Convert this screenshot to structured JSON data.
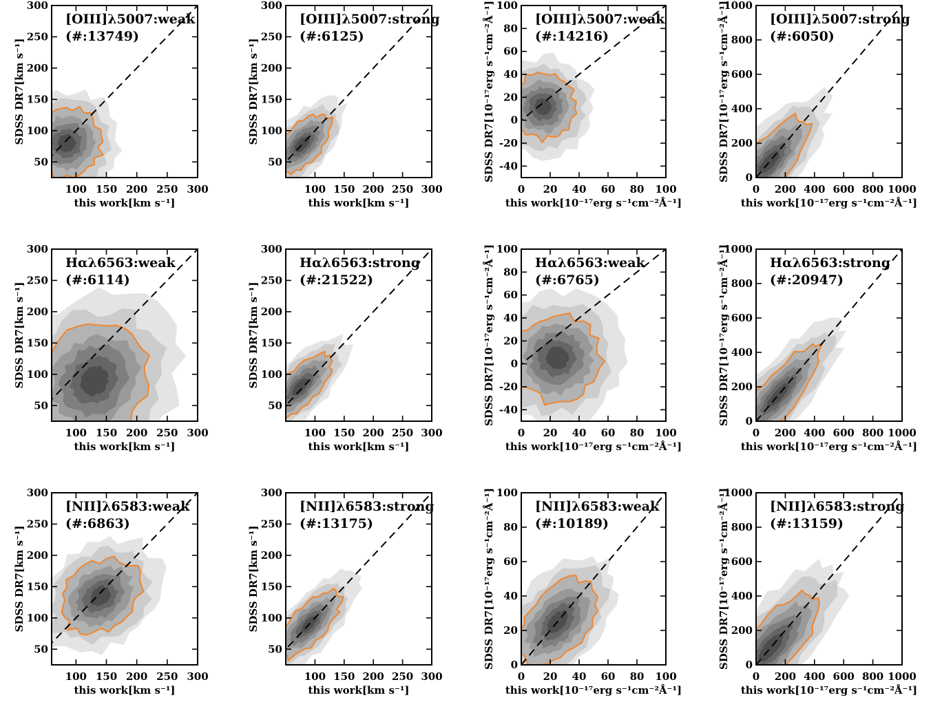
{
  "chart_data": [
    {
      "type": "contour-scatter",
      "title": "[OIII]λ5007:weak",
      "count_label": "(#:13749)",
      "xlabel": "this work[km s⁻¹]",
      "ylabel": "SDSS DR7[km s⁻¹]",
      "xlim": [
        60,
        300
      ],
      "ylim": [
        25,
        300
      ],
      "xticks": [
        100,
        150,
        200,
        250,
        300
      ],
      "yticks": [
        50,
        100,
        150,
        200,
        250,
        300
      ],
      "density_center": [
        85,
        80
      ],
      "spread": [
        35,
        30
      ],
      "corr": 0.4
    },
    {
      "type": "contour-scatter",
      "title": "[OIII]λ5007:strong",
      "count_label": "(#:6125)",
      "xlabel": "this work[km s⁻¹]",
      "ylabel": "SDSS DR7[km s⁻¹]",
      "xlim": [
        50,
        300
      ],
      "ylim": [
        25,
        300
      ],
      "xticks": [
        100,
        150,
        200,
        250,
        300
      ],
      "yticks": [
        50,
        100,
        150,
        200,
        250,
        300
      ],
      "density_center": [
        78,
        78
      ],
      "spread": [
        35,
        35
      ],
      "corr": 0.92
    },
    {
      "type": "contour-scatter",
      "title": "[OIII]λ5007:weak",
      "count_label": "(#:14216)",
      "xlabel": "this work[10⁻¹⁷erg s⁻¹cm⁻²Å⁻¹]",
      "ylabel": "SDSS DR7[10⁻¹⁷erg s⁻¹cm⁻²Å⁻¹]",
      "xlim": [
        0,
        100
      ],
      "ylim": [
        -50,
        100
      ],
      "xticks": [
        0,
        20,
        40,
        60,
        80,
        100
      ],
      "yticks": [
        -40,
        -20,
        0,
        20,
        40,
        60,
        80,
        100
      ],
      "density_center": [
        15,
        12
      ],
      "spread": [
        14,
        14
      ],
      "corr": 0.3
    },
    {
      "type": "contour-scatter",
      "title": "[OIII]λ5007:strong",
      "count_label": "(#:6050)",
      "xlabel": "this work[10⁻¹⁷erg s⁻¹cm⁻²Å⁻¹]",
      "ylabel": "SDSS DR7[10⁻¹⁷erg s⁻¹cm⁻²Å⁻¹]",
      "xlim": [
        0,
        1000
      ],
      "ylim": [
        0,
        1000
      ],
      "xticks": [
        0,
        200,
        400,
        600,
        800,
        1000
      ],
      "yticks": [
        0,
        200,
        400,
        600,
        800,
        1000
      ],
      "density_center": [
        90,
        90
      ],
      "spread": [
        200,
        200
      ],
      "corr": 0.95
    },
    {
      "type": "contour-scatter",
      "title": "Hαλ6563:weak",
      "count_label": "(#:6114)",
      "xlabel": "this work[km s⁻¹]",
      "ylabel": "SDSS DR7[km s⁻¹]",
      "xlim": [
        60,
        300
      ],
      "ylim": [
        25,
        300
      ],
      "xticks": [
        100,
        150,
        200,
        250,
        300
      ],
      "yticks": [
        50,
        100,
        150,
        200,
        250,
        300
      ],
      "density_center": [
        130,
        90
      ],
      "spread": [
        50,
        60
      ],
      "corr": 0.5
    },
    {
      "type": "contour-scatter",
      "title": "Hαλ6563:strong",
      "count_label": "(#:21522)",
      "xlabel": "this work[km s⁻¹]",
      "ylabel": "SDSS DR7[km s⁻¹]",
      "xlim": [
        50,
        300
      ],
      "ylim": [
        25,
        300
      ],
      "xticks": [
        100,
        150,
        200,
        250,
        300
      ],
      "yticks": [
        50,
        100,
        150,
        200,
        250,
        300
      ],
      "density_center": [
        75,
        80
      ],
      "spread": [
        40,
        40
      ],
      "corr": 0.95
    },
    {
      "type": "contour-scatter",
      "title": "Hαλ6563:weak",
      "count_label": "(#:6765)",
      "xlabel": "this work[10⁻¹⁷erg s⁻¹cm⁻²Å⁻¹]",
      "ylabel": "SDSS DR7[10⁻¹⁷erg s⁻¹cm⁻²Å⁻¹]",
      "xlim": [
        0,
        100
      ],
      "ylim": [
        -50,
        100
      ],
      "xticks": [
        0,
        20,
        40,
        60,
        80,
        100
      ],
      "yticks": [
        -40,
        -20,
        0,
        20,
        40,
        60,
        80,
        100
      ],
      "density_center": [
        25,
        5
      ],
      "spread": [
        20,
        18
      ],
      "corr": 0.3
    },
    {
      "type": "contour-scatter",
      "title": "Hαλ6563:strong",
      "count_label": "(#:20947)",
      "xlabel": "this work[10⁻¹⁷erg s⁻¹cm⁻²Å⁻¹]",
      "ylabel": "SDSS DR7[10⁻¹⁷erg s⁻¹cm⁻²Å⁻¹]",
      "xlim": [
        0,
        1000
      ],
      "ylim": [
        0,
        1000
      ],
      "xticks": [
        0,
        200,
        400,
        600,
        800,
        1000
      ],
      "yticks": [
        0,
        200,
        400,
        600,
        800,
        1000
      ],
      "density_center": [
        150,
        150
      ],
      "spread": [
        220,
        220
      ],
      "corr": 0.97
    },
    {
      "type": "contour-scatter",
      "title": "[NII]λ6583:weak",
      "count_label": "(#:6863)",
      "xlabel": "this work[km s⁻¹]",
      "ylabel": "SDSS DR7[km s⁻¹]",
      "xlim": [
        60,
        300
      ],
      "ylim": [
        25,
        300
      ],
      "xticks": [
        100,
        150,
        200,
        250,
        300
      ],
      "yticks": [
        50,
        100,
        150,
        200,
        250,
        300
      ],
      "density_center": [
        140,
        135
      ],
      "spread": [
        45,
        35
      ],
      "corr": 0.7
    },
    {
      "type": "contour-scatter",
      "title": "[NII]λ6583:strong",
      "count_label": "(#:13175)",
      "xlabel": "this work[km s⁻¹]",
      "ylabel": "SDSS DR7[km s⁻¹]",
      "xlim": [
        50,
        300
      ],
      "ylim": [
        25,
        300
      ],
      "xticks": [
        100,
        150,
        200,
        250,
        300
      ],
      "yticks": [
        50,
        100,
        150,
        200,
        250,
        300
      ],
      "density_center": [
        90,
        90
      ],
      "spread": [
        40,
        40
      ],
      "corr": 0.95
    },
    {
      "type": "contour-scatter",
      "title": "[NII]λ6583:weak",
      "count_label": "(#:10189)",
      "xlabel": "this work[10⁻¹⁷erg s⁻¹cm⁻²Å⁻¹]",
      "ylabel": "SDSS DR7[10⁻¹⁷erg s⁻¹cm⁻²Å⁻¹]",
      "xlim": [
        0,
        100
      ],
      "ylim": [
        0,
        100
      ],
      "xticks": [
        0,
        20,
        40,
        60,
        80,
        100
      ],
      "yticks": [
        0,
        20,
        40,
        60,
        80,
        100
      ],
      "density_center": [
        25,
        25
      ],
      "spread": [
        18,
        18
      ],
      "corr": 0.85
    },
    {
      "type": "contour-scatter",
      "title": "[NII]λ6583:strong",
      "count_label": "(#:13159)",
      "xlabel": "this work[10⁻¹⁷erg s⁻¹cm⁻²Å⁻¹]",
      "ylabel": "SDSS DR7[10⁻¹⁷erg s⁻¹cm⁻²Å⁻¹]",
      "xlim": [
        0,
        1000
      ],
      "ylim": [
        0,
        1000
      ],
      "xticks": [
        0,
        200,
        400,
        600,
        800,
        1000
      ],
      "yticks": [
        0,
        200,
        400,
        600,
        800,
        1000
      ],
      "density_center": [
        100,
        100
      ],
      "spread": [
        250,
        250
      ],
      "corr": 0.95
    }
  ],
  "colors": {
    "contour_outline": "#f0862e",
    "density_levels": [
      "#e4e4e4",
      "#cccccc",
      "#b3b3b3",
      "#999999",
      "#7f7f7f",
      "#666666",
      "#4d4d4d"
    ],
    "reference_line": "#000000"
  }
}
